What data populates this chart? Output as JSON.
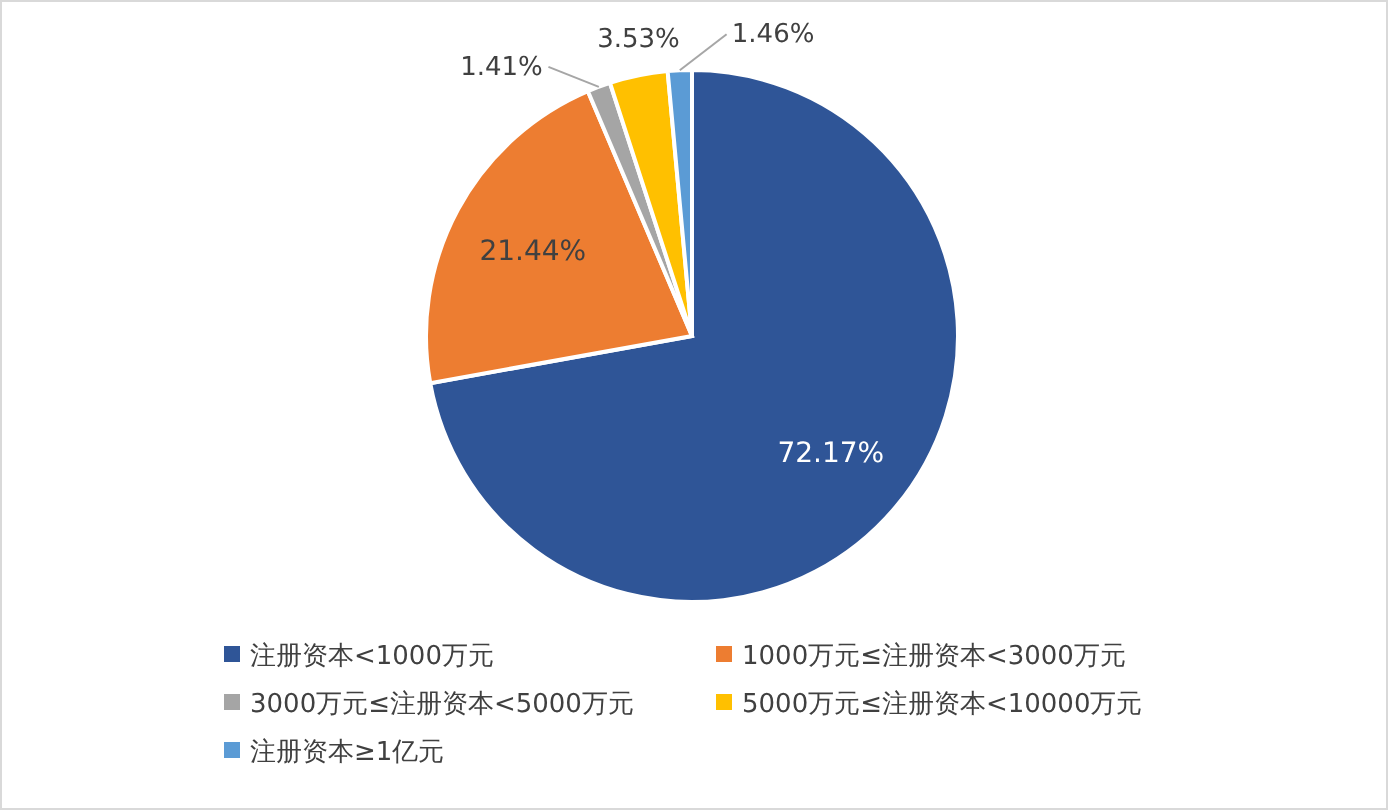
{
  "chart_data": {
    "type": "pie",
    "categories": [
      "注册资本<1000万元",
      "1000万元≤注册资本<3000万元",
      "3000万元≤注册资本<5000万元",
      "5000万元≤注册资本<10000万元",
      "注册资本≥1亿元"
    ],
    "values": [
      72.17,
      21.44,
      1.41,
      3.53,
      1.46
    ],
    "colors": [
      "#2f5597",
      "#ed7d31",
      "#a5a5a5",
      "#ffc000",
      "#5b9bd5"
    ],
    "value_labels": [
      "72.17%",
      "21.44%",
      "1.41%",
      "3.53%",
      "1.46%"
    ],
    "legend": "bottom"
  }
}
